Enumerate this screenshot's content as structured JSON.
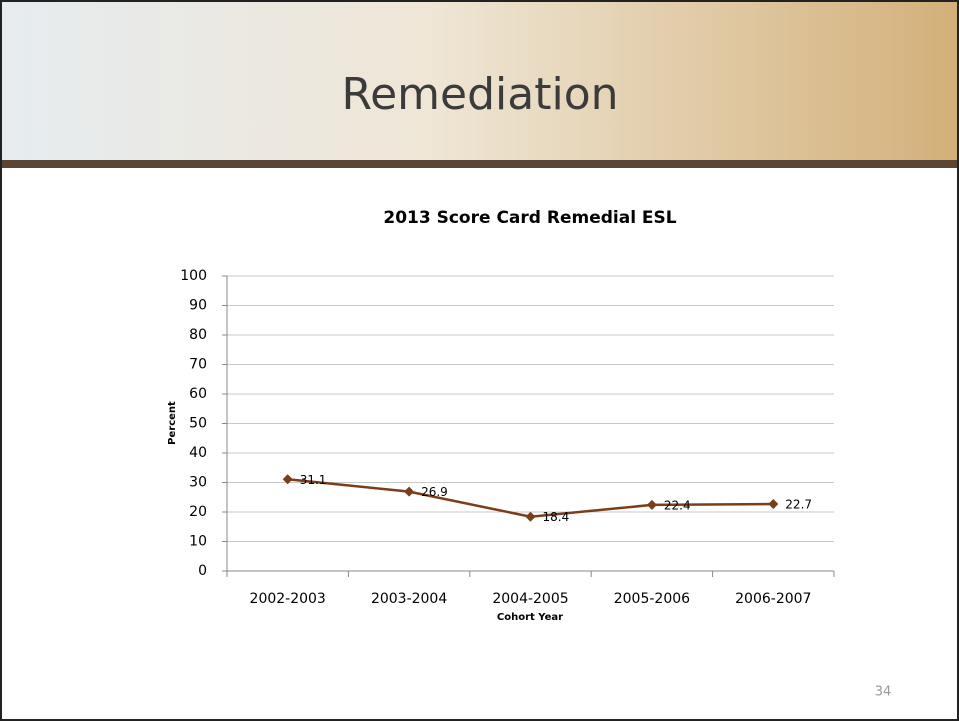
{
  "slide_title": "Remediation",
  "page_number": "34",
  "chart_data": {
    "type": "line",
    "title": "2013 Score Card Remedial ESL",
    "x_label": "Cohort Year",
    "y_label": "Percent",
    "categories": [
      "2002-2003",
      "2003-2004",
      "2004-2005",
      "2005-2006",
      "2006-2007"
    ],
    "series": [
      {
        "name": "Remedial ESL",
        "color": "#7a3e1c",
        "values": [
          31.1,
          26.9,
          18.4,
          22.4,
          22.7
        ]
      }
    ],
    "ylim": [
      0,
      100
    ],
    "yticks": [
      0,
      10,
      20,
      30,
      40,
      50,
      60,
      70,
      80,
      90,
      100
    ],
    "grid": true,
    "legend": false
  }
}
